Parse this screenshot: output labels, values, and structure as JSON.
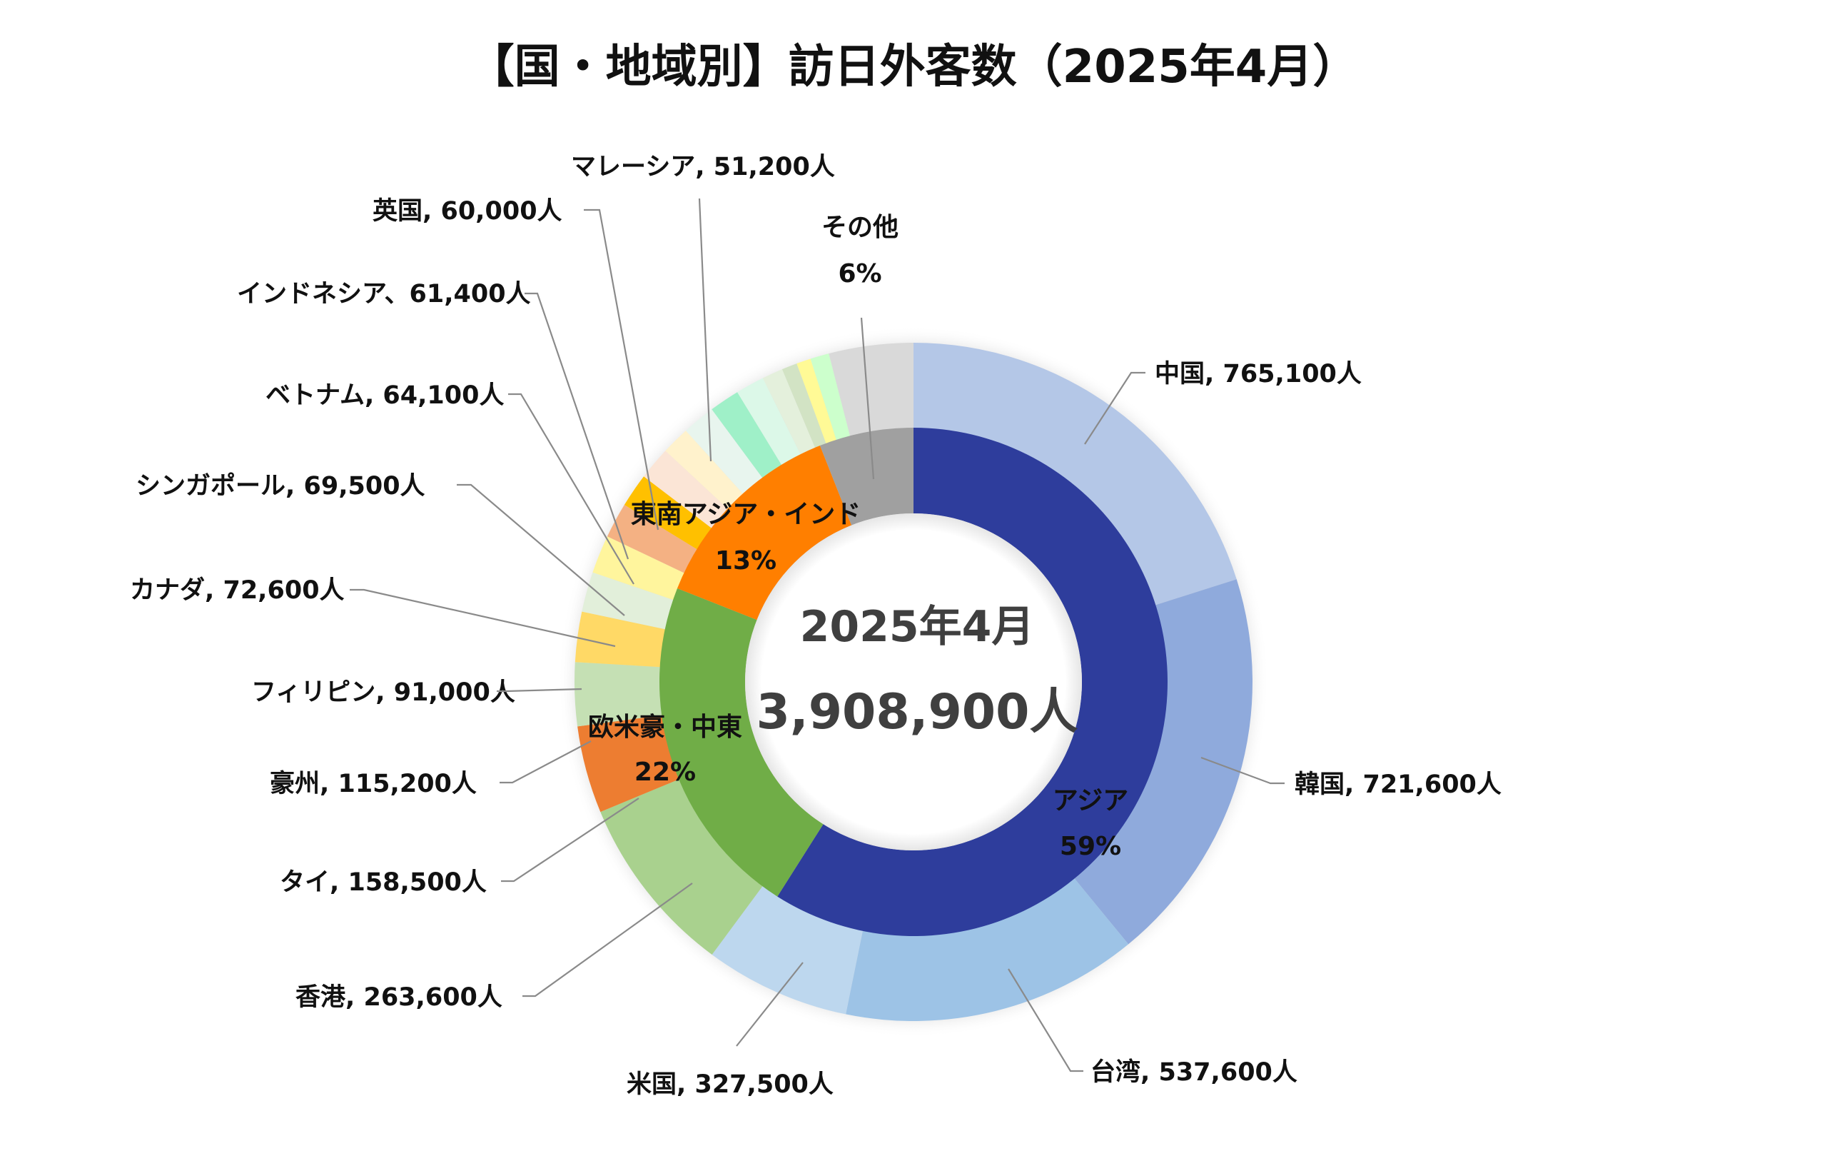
{
  "chart_data": {
    "type": "donut",
    "title": "【国・地域別】訪日外客数（2025年4月）",
    "center": {
      "line1": "2025年4月",
      "line2": "3,908,900人"
    },
    "inner_ring": [
      {
        "name": "アジア",
        "percent": 59,
        "pct_label": "59%",
        "color": "#2e3d9c",
        "text_color": "#ffffff"
      },
      {
        "name": "欧米豪・中東",
        "percent": 22,
        "pct_label": "22%",
        "color": "#70ad47",
        "text_color": "#111111"
      },
      {
        "name": "東南アジア・インド",
        "percent": 13,
        "pct_label": "13%",
        "color": "#ff7f00",
        "text_color": "#111111"
      },
      {
        "name": "その他",
        "percent": 6,
        "pct_label": "6%",
        "color": "#a0a0a0",
        "text_color": "#111111"
      }
    ],
    "outer_ring": [
      {
        "name": "中国",
        "value": 765100,
        "label": "中国, 765,100人",
        "color": "#b4c7e7"
      },
      {
        "name": "韓国",
        "value": 721600,
        "label": "韓国, 721,600人",
        "color": "#8faadc"
      },
      {
        "name": "台湾",
        "value": 537600,
        "label": "台湾, 537,600人",
        "color": "#9dc3e6"
      },
      {
        "name": "香港",
        "value": 263600,
        "label": "香港, 263,600人",
        "color": "#bdd7ee"
      },
      {
        "name": "米国",
        "value": 327500,
        "label": "米国, 327,500人",
        "color": "#a9d18e"
      },
      {
        "name": "タイ",
        "value": 158500,
        "label": "タイ, 158,500人",
        "color": "#ed7d31"
      },
      {
        "name": "豪州",
        "value": 115200,
        "label": "豪州, 115,200人",
        "color": "#c5e0b4"
      },
      {
        "name": "フィリピン",
        "value": 91000,
        "label": "フィリピン, 91,000人",
        "color": "#ffd966"
      },
      {
        "name": "カナダ",
        "value": 72600,
        "label": "カナダ, 72,600人",
        "color": "#e2efda"
      },
      {
        "name": "シンガポール",
        "value": 69500,
        "label": "シンガポール, 69,500人",
        "color": "#fff59d"
      },
      {
        "name": "ベトナム",
        "value": 64100,
        "label": "ベトナム, 64,100人",
        "color": "#f4b183"
      },
      {
        "name": "インドネシア",
        "value": 61400,
        "label": "インドネシア、61,400人",
        "color": "#ffc000"
      },
      {
        "name": "英国",
        "value": 60000,
        "label": "英国, 60,000人",
        "color": "#fbe5d6"
      },
      {
        "name": "マレーシア",
        "value": 51200,
        "label": "マレーシア, 51,200人",
        "color": "#fff2cc"
      },
      {
        "name": "",
        "value": 60000,
        "label": "",
        "color": "#e8f5ee"
      },
      {
        "name": "",
        "value": 55000,
        "label": "",
        "color": "#9ff0c8"
      },
      {
        "name": "",
        "value": 52000,
        "label": "",
        "color": "#dcf8e8"
      },
      {
        "name": "",
        "value": 38000,
        "label": "",
        "color": "#e4f0dc"
      },
      {
        "name": "",
        "value": 28000,
        "label": "",
        "color": "#d2e3c4"
      },
      {
        "name": "",
        "value": 26000,
        "label": "",
        "color": "#fffa96"
      },
      {
        "name": "",
        "value": 34000,
        "label": "",
        "color": "#ccffcc"
      },
      {
        "name": "その他",
        "value": 153000,
        "label": "",
        "color": "#d9d9d9"
      }
    ]
  }
}
